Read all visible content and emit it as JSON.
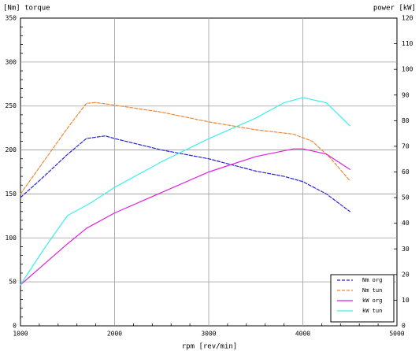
{
  "chart_data": {
    "type": "line",
    "xlabel": "rpm [rev/min]",
    "ylabel_left": "[Nm] torque",
    "ylabel_right": "power [kW]",
    "xlim": [
      1000,
      5000
    ],
    "ylim_left": [
      0,
      350
    ],
    "ylim_right": [
      0,
      120
    ],
    "grid": true,
    "legend_position": "bottom-right",
    "x_ticks": [
      1000,
      2000,
      3000,
      4000,
      5000
    ],
    "y_left_ticks": [
      0,
      50,
      100,
      150,
      200,
      250,
      300,
      350
    ],
    "y_right_ticks": [
      0,
      10,
      20,
      30,
      40,
      50,
      60,
      70,
      80,
      90,
      100,
      110,
      120
    ],
    "series": [
      {
        "name": "Nm org",
        "axis": "left",
        "style": "dashed",
        "color": "#2424d9",
        "points": [
          {
            "x": 1000,
            "y": 146
          },
          {
            "x": 1200,
            "y": 165
          },
          {
            "x": 1500,
            "y": 195
          },
          {
            "x": 1700,
            "y": 213
          },
          {
            "x": 1900,
            "y": 216
          },
          {
            "x": 2000,
            "y": 213
          },
          {
            "x": 2500,
            "y": 200
          },
          {
            "x": 3000,
            "y": 190
          },
          {
            "x": 3500,
            "y": 176
          },
          {
            "x": 3800,
            "y": 170
          },
          {
            "x": 4000,
            "y": 164
          },
          {
            "x": 4250,
            "y": 150
          },
          {
            "x": 4500,
            "y": 130
          }
        ]
      },
      {
        "name": "Nm tun",
        "axis": "left",
        "style": "dashed",
        "color": "#e88a3a",
        "points": [
          {
            "x": 1000,
            "y": 150
          },
          {
            "x": 1200,
            "y": 180
          },
          {
            "x": 1500,
            "y": 225
          },
          {
            "x": 1700,
            "y": 253
          },
          {
            "x": 1800,
            "y": 254
          },
          {
            "x": 2000,
            "y": 251
          },
          {
            "x": 2500,
            "y": 243
          },
          {
            "x": 3000,
            "y": 232
          },
          {
            "x": 3500,
            "y": 223
          },
          {
            "x": 3900,
            "y": 218
          },
          {
            "x": 4100,
            "y": 210
          },
          {
            "x": 4300,
            "y": 190
          },
          {
            "x": 4500,
            "y": 165
          }
        ]
      },
      {
        "name": "kW org",
        "axis": "right",
        "style": "solid",
        "color": "#e01fe0",
        "points": [
          {
            "x": 1000,
            "y": 16
          },
          {
            "x": 1250,
            "y": 24
          },
          {
            "x": 1500,
            "y": 32
          },
          {
            "x": 1700,
            "y": 38
          },
          {
            "x": 2000,
            "y": 44
          },
          {
            "x": 2500,
            "y": 52
          },
          {
            "x": 3000,
            "y": 60
          },
          {
            "x": 3500,
            "y": 66
          },
          {
            "x": 3900,
            "y": 69
          },
          {
            "x": 4000,
            "y": 69
          },
          {
            "x": 4250,
            "y": 67
          },
          {
            "x": 4500,
            "y": 61
          }
        ]
      },
      {
        "name": "kW tun",
        "axis": "right",
        "style": "solid",
        "color": "#3cefef",
        "points": [
          {
            "x": 1000,
            "y": 16
          },
          {
            "x": 1250,
            "y": 30
          },
          {
            "x": 1500,
            "y": 43
          },
          {
            "x": 1750,
            "y": 48
          },
          {
            "x": 2000,
            "y": 54
          },
          {
            "x": 2500,
            "y": 64
          },
          {
            "x": 3000,
            "y": 73
          },
          {
            "x": 3500,
            "y": 81
          },
          {
            "x": 3800,
            "y": 87
          },
          {
            "x": 4000,
            "y": 89
          },
          {
            "x": 4250,
            "y": 87
          },
          {
            "x": 4500,
            "y": 78
          }
        ]
      }
    ]
  },
  "colors": {
    "background": "#ffffff",
    "plot_background": "#ffffff",
    "grid": "#9b9b9b",
    "axis": "#000000",
    "legend_background": "#ffffff",
    "legend_border": "#000000"
  }
}
